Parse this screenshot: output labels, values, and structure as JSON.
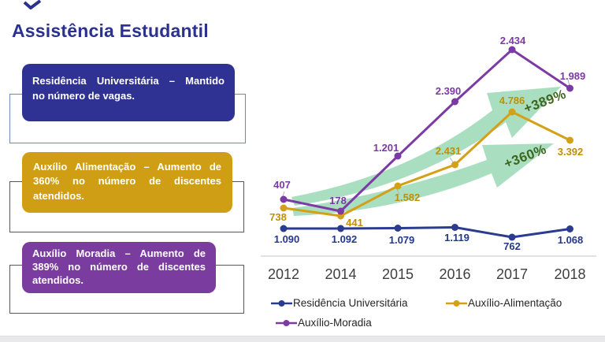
{
  "slide": {
    "title": "Assistência Estudantil",
    "title_color": "#2A3190",
    "callouts": [
      {
        "lines": [
          "Residência Universitária – Mantido",
          "no número de vagas."
        ],
        "fill": "#2F3193",
        "frame_border": "#7583C0"
      },
      {
        "lines": [
          "Auxílio Alimentação – Aumento de",
          "360% no número de discentes",
          "atendidos."
        ],
        "fill": "#D09E15",
        "frame_border": "#595959"
      },
      {
        "lines": [
          "Auxílio Moradia – Aumento de",
          "389% no número de discentes",
          "atendidos."
        ],
        "fill": "#7B3CA0",
        "frame_border": "#595959"
      }
    ]
  },
  "chart_data": {
    "type": "line",
    "categories": [
      "2012",
      "2014",
      "2015",
      "2016",
      "2017",
      "2018"
    ],
    "series": [
      {
        "name": "Residência Universitária",
        "color": "#2B3B8F",
        "label_color": "#24388A",
        "values": [
          1090,
          1092,
          1079,
          1119,
          762,
          1068
        ],
        "point_labels": [
          "1.090",
          "1.092",
          "1.079",
          "1.119",
          "762",
          "1.068"
        ]
      },
      {
        "name": "Auxílio-Alimentação",
        "color": "#D4A017",
        "label_color": "#BF9000",
        "values": [
          738,
          441,
          1582,
          2431,
          4786,
          3392
        ],
        "point_labels": [
          "738",
          "441",
          "1.582",
          "2.431",
          "4.786",
          "3.392"
        ]
      },
      {
        "name": "Auxílio-Moradia",
        "color": "#7C3AA5",
        "label_color": "#7C3AA5",
        "values": [
          407,
          178,
          1201,
          2390,
          2434,
          1989
        ],
        "point_labels": [
          "407",
          "178",
          "1.201",
          "2.390",
          "2.434",
          "1.989"
        ]
      }
    ],
    "annotations": [
      {
        "text": "+389%",
        "color": "#3F661E"
      },
      {
        "text": "+360%",
        "color": "#3F661E"
      }
    ],
    "arrow_color": "#A9DFC0",
    "axis_color": "#D9D9D9",
    "tick_color": "#3F3F3F",
    "legend_position": "bottom",
    "grid": false
  }
}
